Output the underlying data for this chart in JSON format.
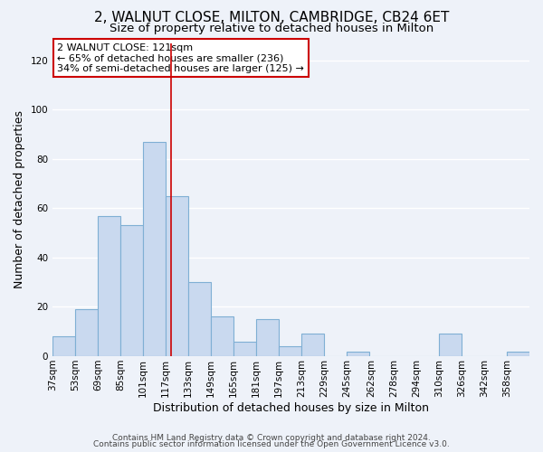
{
  "title": "2, WALNUT CLOSE, MILTON, CAMBRIDGE, CB24 6ET",
  "subtitle": "Size of property relative to detached houses in Milton",
  "xlabel": "Distribution of detached houses by size in Milton",
  "ylabel": "Number of detached properties",
  "bin_labels": [
    "37sqm",
    "53sqm",
    "69sqm",
    "85sqm",
    "101sqm",
    "117sqm",
    "133sqm",
    "149sqm",
    "165sqm",
    "181sqm",
    "197sqm",
    "213sqm",
    "229sqm",
    "245sqm",
    "262sqm",
    "278sqm",
    "294sqm",
    "310sqm",
    "326sqm",
    "342sqm",
    "358sqm"
  ],
  "bar_values": [
    8,
    19,
    57,
    53,
    87,
    65,
    30,
    16,
    6,
    15,
    4,
    9,
    0,
    2,
    0,
    0,
    0,
    9,
    0,
    0,
    2
  ],
  "bar_color": "#c9d9ef",
  "bar_edgecolor": "#7fafd4",
  "vline_x": 121,
  "bin_starts": [
    37,
    53,
    69,
    85,
    101,
    117,
    133,
    149,
    165,
    181,
    197,
    213,
    229,
    245,
    262,
    278,
    294,
    310,
    326,
    342,
    358
  ],
  "bin_width": 16,
  "ylim": [
    0,
    127
  ],
  "yticks": [
    0,
    20,
    40,
    60,
    80,
    100,
    120
  ],
  "annotation_text": "2 WALNUT CLOSE: 121sqm\n← 65% of detached houses are smaller (236)\n34% of semi-detached houses are larger (125) →",
  "annotation_box_color": "#ffffff",
  "annotation_box_edgecolor": "#cc0000",
  "footer_line1": "Contains HM Land Registry data © Crown copyright and database right 2024.",
  "footer_line2": "Contains public sector information licensed under the Open Government Licence v3.0.",
  "background_color": "#eef2f9",
  "grid_color": "#ffffff",
  "title_fontsize": 11,
  "subtitle_fontsize": 9.5,
  "axis_label_fontsize": 9,
  "tick_fontsize": 7.5,
  "annotation_fontsize": 8,
  "footer_fontsize": 6.5
}
